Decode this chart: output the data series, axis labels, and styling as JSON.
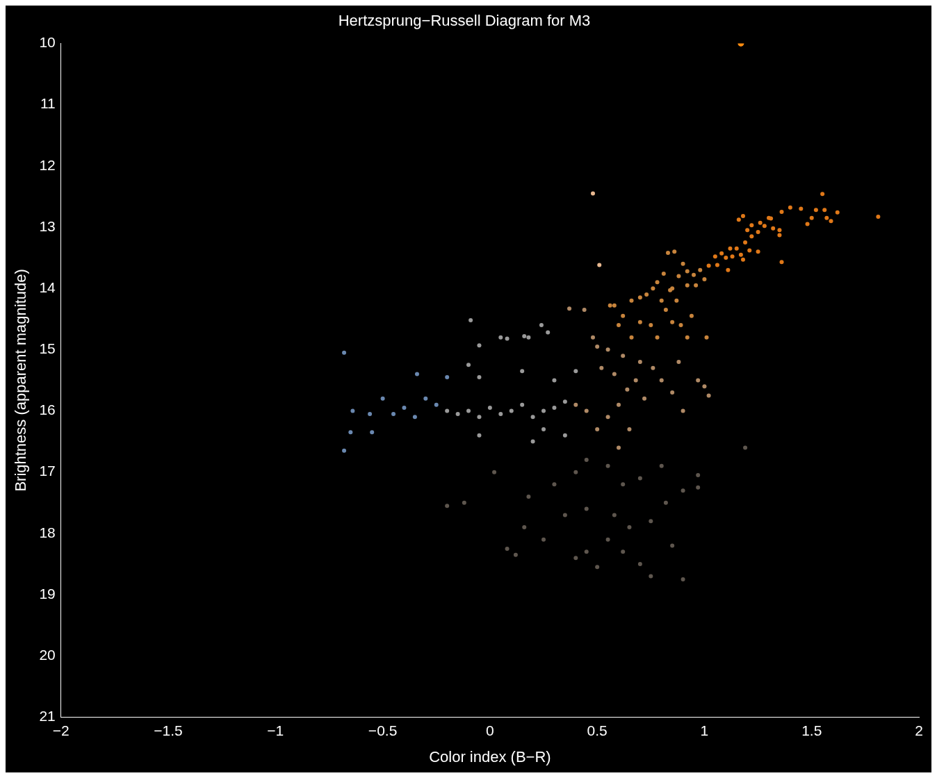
{
  "chart_data": {
    "type": "scatter",
    "title": "Hertzsprung−Russell Diagram for M3",
    "xlabel": "Color index (B−R)",
    "ylabel": "Brightness (apparent magnitude)",
    "xlim": [
      -2,
      2
    ],
    "xticks": [
      -2,
      -1.5,
      -1,
      -0.5,
      0,
      0.5,
      1,
      1.5,
      2
    ],
    "ylim": [
      21,
      10
    ],
    "yticks": [
      10,
      11,
      12,
      13,
      14,
      15,
      16,
      17,
      18,
      19,
      20,
      21
    ],
    "grid": false,
    "legend": false,
    "marker": "circle",
    "series": [
      {
        "color": "#ff8c10",
        "x": [
          1.17
        ],
        "values": [
          10.0
        ]
      },
      {
        "color": "#e8b890",
        "x": [
          0.48,
          0.51
        ],
        "values": [
          12.45,
          13.62
        ]
      },
      {
        "color": "#e07818",
        "x": [
          1.55,
          1.81,
          1.4,
          1.45,
          1.52,
          1.56,
          1.62,
          1.57,
          1.5,
          1.59,
          1.48,
          1.36,
          1.3,
          1.31,
          1.26,
          1.28,
          1.22,
          1.2,
          1.16,
          1.18,
          1.32,
          1.35,
          1.35,
          1.36,
          1.25,
          1.22,
          1.19,
          1.15,
          1.12,
          1.21,
          1.25,
          1.17,
          1.13,
          1.18,
          1.08,
          1.05,
          1.1,
          1.02,
          1.06,
          1.11
        ],
        "values": [
          12.46,
          12.83,
          12.68,
          12.7,
          12.72,
          12.72,
          12.76,
          12.85,
          12.85,
          12.9,
          12.95,
          12.75,
          12.85,
          12.86,
          12.93,
          12.98,
          12.97,
          13.05,
          12.88,
          12.82,
          13.02,
          13.05,
          13.13,
          13.57,
          13.08,
          13.15,
          13.25,
          13.35,
          13.35,
          13.38,
          13.4,
          13.45,
          13.48,
          13.53,
          13.43,
          13.48,
          13.5,
          13.63,
          13.62,
          13.7
        ]
      },
      {
        "color": "#c8843c",
        "x": [
          0.98,
          0.9,
          0.86,
          0.83,
          0.92,
          0.95,
          1.0,
          0.96,
          0.88,
          0.81,
          0.78,
          0.76,
          0.73,
          0.84,
          0.87,
          0.8,
          0.82,
          0.7,
          0.66,
          0.62,
          0.6,
          0.7,
          0.75,
          0.85,
          0.94,
          0.92,
          1.01,
          0.89,
          0.78,
          0.66,
          0.58,
          0.56,
          0.85,
          0.92
        ],
        "values": [
          13.7,
          13.6,
          13.4,
          13.42,
          13.72,
          13.78,
          13.85,
          13.95,
          13.8,
          13.76,
          13.9,
          14.0,
          14.1,
          14.03,
          14.2,
          14.2,
          14.35,
          14.15,
          14.2,
          14.45,
          14.6,
          14.55,
          14.6,
          14.55,
          14.45,
          14.8,
          14.8,
          14.6,
          14.8,
          14.8,
          14.28,
          14.28,
          14.0,
          13.95
        ]
      },
      {
        "color": "#b08a66",
        "x": [
          0.55,
          0.5,
          0.48,
          0.62,
          0.7,
          0.76,
          0.8,
          0.68,
          0.58,
          0.52,
          0.64,
          0.72,
          0.6,
          0.88,
          0.85,
          0.97,
          1.0,
          1.02,
          0.9,
          0.55,
          0.5,
          0.45,
          0.4,
          0.44,
          0.37,
          0.6,
          0.65
        ],
        "values": [
          15.0,
          14.95,
          14.8,
          15.1,
          15.2,
          15.3,
          15.5,
          15.5,
          15.4,
          15.3,
          15.65,
          15.8,
          15.9,
          15.2,
          15.7,
          15.5,
          15.6,
          15.75,
          16.0,
          16.1,
          16.3,
          16.0,
          15.9,
          14.35,
          14.33,
          16.6,
          16.3
        ]
      },
      {
        "color": "#9a9a9a",
        "x": [
          0.35,
          0.3,
          0.25,
          0.2,
          0.15,
          0.1,
          0.05,
          0.0,
          -0.05,
          -0.1,
          -0.15,
          -0.2,
          -0.1,
          -0.05,
          0.05,
          0.08,
          0.16,
          0.18,
          0.24,
          0.27,
          -0.09,
          -0.05,
          0.15,
          0.3,
          0.4,
          0.35,
          0.2,
          0.25,
          -0.05
        ],
        "values": [
          15.85,
          15.95,
          16.0,
          16.1,
          15.9,
          16.0,
          16.05,
          15.95,
          16.1,
          16.0,
          16.05,
          16.0,
          15.25,
          15.45,
          14.8,
          14.82,
          14.78,
          14.8,
          14.6,
          14.72,
          14.52,
          14.93,
          15.35,
          15.5,
          15.35,
          16.4,
          16.5,
          16.3,
          16.4
        ]
      },
      {
        "color": "#6a88b0",
        "x": [
          -0.25,
          -0.3,
          -0.35,
          -0.4,
          -0.45,
          -0.5,
          -0.56,
          -0.55,
          -0.64,
          -0.68,
          -0.65,
          -0.68,
          -0.34,
          -0.2
        ],
        "values": [
          15.9,
          15.8,
          16.1,
          15.95,
          16.05,
          15.8,
          16.05,
          16.35,
          16.0,
          15.05,
          16.35,
          16.65,
          15.4,
          15.45
        ]
      },
      {
        "color": "#5e564e",
        "x": [
          0.4,
          0.45,
          0.55,
          0.62,
          0.7,
          0.8,
          0.9,
          0.97,
          0.97,
          0.3,
          0.18,
          0.02,
          -0.12,
          -0.2,
          0.35,
          0.45,
          0.58,
          0.65,
          0.75,
          0.82,
          0.55,
          0.45,
          0.4,
          0.62,
          0.7,
          0.5,
          0.25,
          0.16,
          0.12,
          0.08,
          0.75,
          0.9,
          1.19,
          0.85
        ],
        "values": [
          17.0,
          16.8,
          16.9,
          17.2,
          17.1,
          16.9,
          17.3,
          17.05,
          17.25,
          17.2,
          17.4,
          17.0,
          17.5,
          17.55,
          17.7,
          17.6,
          17.7,
          17.9,
          17.8,
          17.5,
          18.1,
          18.3,
          18.4,
          18.3,
          18.5,
          18.55,
          18.1,
          17.9,
          18.35,
          18.25,
          18.7,
          18.75,
          16.6,
          18.2
        ]
      }
    ]
  }
}
